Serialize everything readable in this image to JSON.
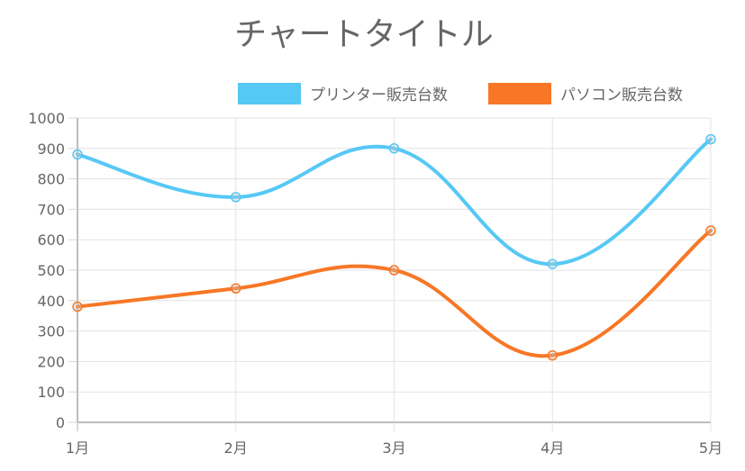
{
  "chart_data": {
    "type": "line",
    "title": "チャートタイトル",
    "xlabel": "",
    "ylabel": "",
    "categories": [
      "1月",
      "2月",
      "3月",
      "4月",
      "5月"
    ],
    "series": [
      {
        "name": "プリンター販売台数",
        "color": "#56C8F5",
        "values": [
          880,
          740,
          900,
          520,
          930
        ]
      },
      {
        "name": "パソコン販売台数",
        "color": "#F77726",
        "values": [
          380,
          440,
          500,
          220,
          630
        ]
      }
    ],
    "ylim": [
      0,
      1000
    ],
    "yticks": [
      0,
      100,
      200,
      300,
      400,
      500,
      600,
      700,
      800,
      900,
      1000
    ],
    "grid": true,
    "legend_position": "top-right",
    "smooth": true
  }
}
